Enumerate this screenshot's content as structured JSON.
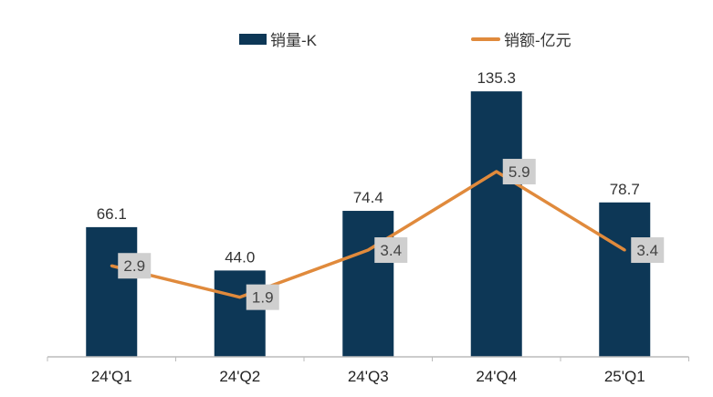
{
  "chart_data": {
    "type": "bar+line",
    "categories": [
      "24'Q1",
      "24'Q2",
      "24'Q3",
      "24'Q4",
      "25'Q1"
    ],
    "series": [
      {
        "name": "销量-K",
        "type": "bar",
        "axis": "left",
        "values": [
          66.1,
          44.0,
          74.4,
          135.3,
          78.7
        ],
        "labels": [
          "66.1",
          "44.0",
          "74.4",
          "135.3",
          "78.7"
        ],
        "color": "#0d3756"
      },
      {
        "name": "销额-亿元",
        "type": "line",
        "axis": "right",
        "values": [
          2.9,
          1.9,
          3.4,
          5.9,
          3.4
        ],
        "labels": [
          "2.9",
          "1.9",
          "3.4",
          "5.9",
          "3.4"
        ],
        "color": "#e08a3c"
      }
    ],
    "ylim_left": [
      0,
      160
    ],
    "ylim_right": [
      0,
      10
    ],
    "legend_position": "top",
    "grid": false,
    "title": "",
    "xlabel": "",
    "ylabel": ""
  }
}
